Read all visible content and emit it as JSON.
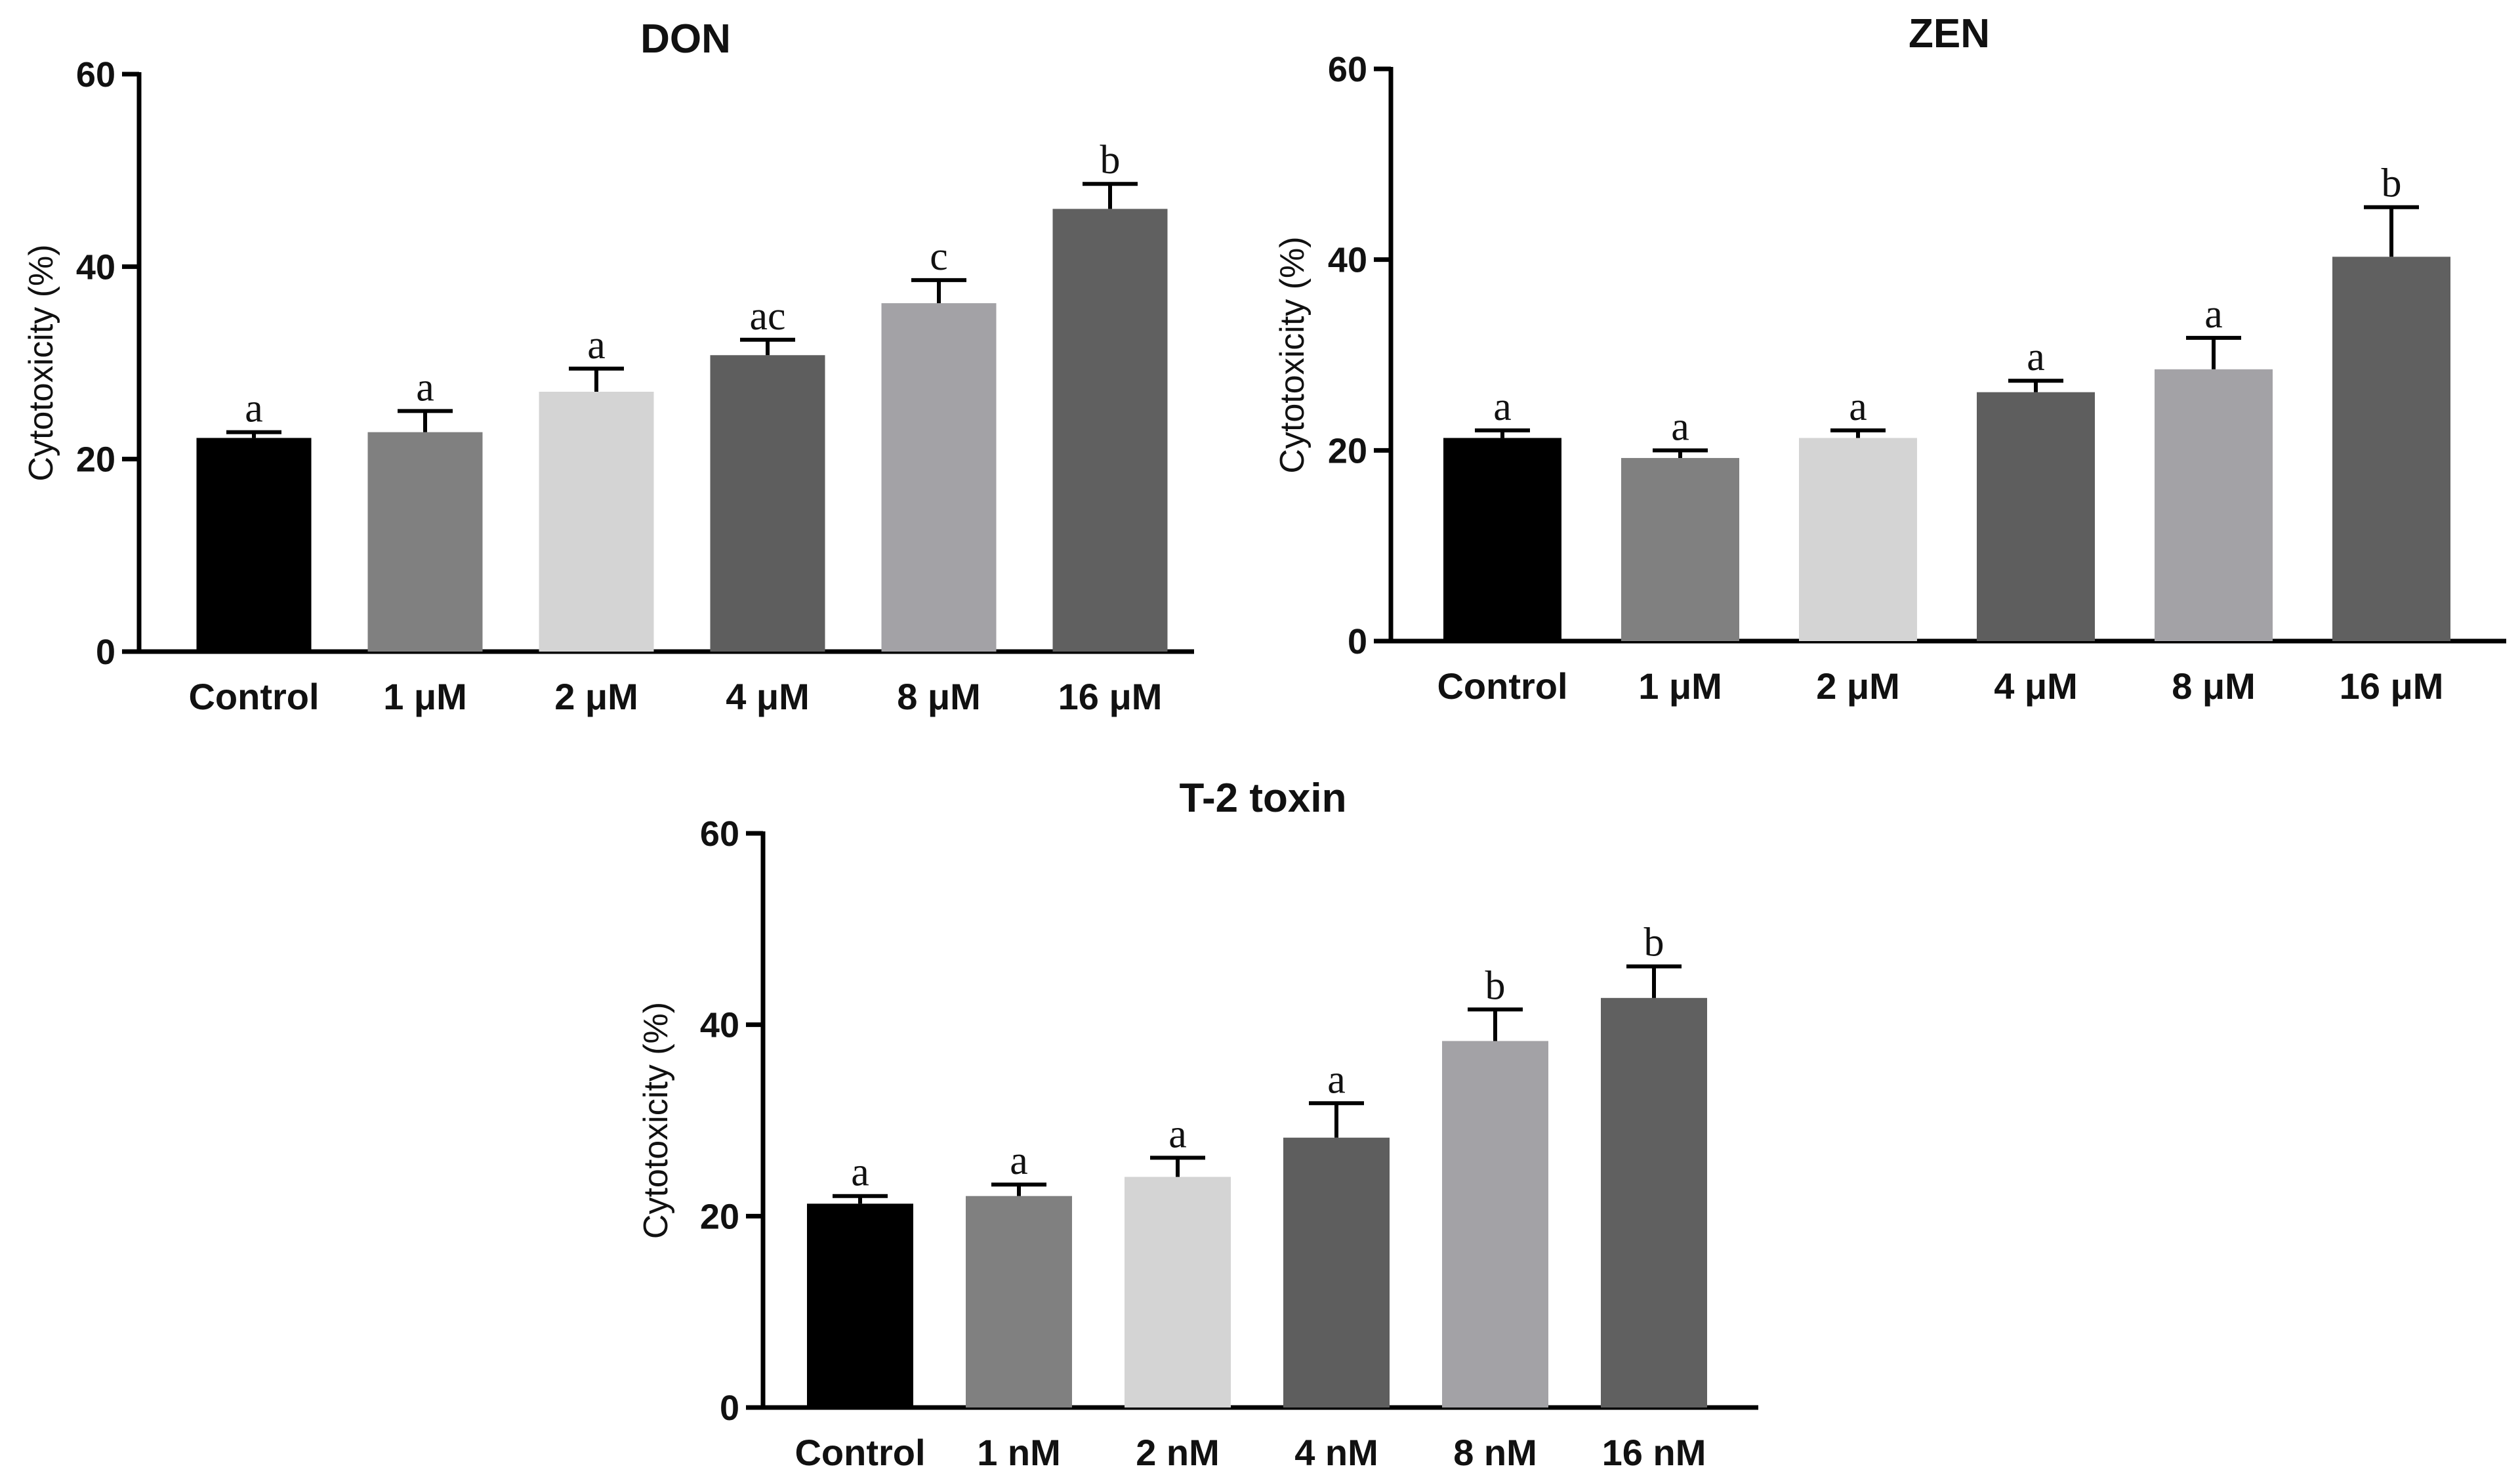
{
  "chart_data": [
    {
      "type": "bar",
      "title": "DON",
      "ylabel": "Cytotoxicity (%)",
      "xlabel": "",
      "ylim": [
        0,
        60
      ],
      "yticks": [
        0,
        20,
        40,
        60
      ],
      "categories": [
        "Control",
        "1 μM",
        "2 μM",
        "4 μM",
        "8 μM",
        "16 μM"
      ],
      "values": [
        22.2,
        22.8,
        27,
        30.8,
        36.2,
        46
      ],
      "errors": [
        0.6,
        2.2,
        2.4,
        1.6,
        2.4,
        2.6
      ],
      "significance": [
        "a",
        "a",
        "a",
        "ac",
        "c",
        "b"
      ],
      "colors": [
        "#000000",
        "#808080",
        "#d4d4d4",
        "#5e5e5e",
        "#a3a2a6",
        "#606060"
      ]
    },
    {
      "type": "bar",
      "title": "ZEN",
      "ylabel": "Cytotoxicity (%)",
      "xlabel": "",
      "ylim": [
        0,
        60
      ],
      "yticks": [
        0,
        20,
        40,
        60
      ],
      "categories": [
        "Control",
        "1 μM",
        "2 μM",
        "4 μM",
        "8 μM",
        "16 μM"
      ],
      "values": [
        21.3,
        19.2,
        21.3,
        26.1,
        28.5,
        40.3
      ],
      "errors": [
        0.8,
        0.8,
        0.8,
        1.2,
        3.3,
        5.2
      ],
      "significance": [
        "a",
        "a",
        "a",
        "a",
        "a",
        "b"
      ],
      "colors": [
        "#000000",
        "#808080",
        "#d4d4d4",
        "#5e5e5e",
        "#a3a2a6",
        "#606060"
      ]
    },
    {
      "type": "bar",
      "title": "T-2 toxin",
      "ylabel": "Cytotoxicity (%)",
      "xlabel": "",
      "ylim": [
        0,
        60
      ],
      "yticks": [
        0,
        20,
        40,
        60
      ],
      "categories": [
        "Control",
        "1 nM",
        "2 nM",
        "4 nM",
        "8 nM",
        "16 nM"
      ],
      "values": [
        21.3,
        22.1,
        24.1,
        28.2,
        38.3,
        42.8
      ],
      "errors": [
        0.8,
        1.2,
        2.0,
        3.6,
        3.3,
        3.3
      ],
      "significance": [
        "a",
        "a",
        "a",
        "a",
        "b",
        "b"
      ],
      "colors": [
        "#000000",
        "#808080",
        "#d4d4d4",
        "#5e5e5e",
        "#a3a2a6",
        "#606060"
      ]
    }
  ]
}
